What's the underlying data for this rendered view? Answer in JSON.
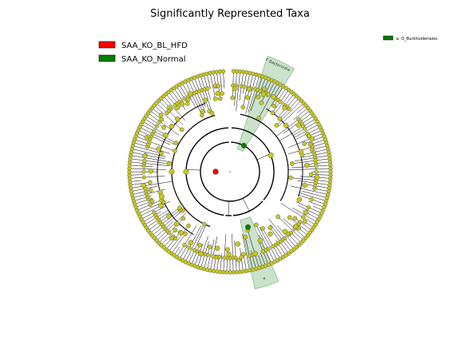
{
  "chart_data": {
    "type": "cladogram",
    "title": "Significantly Represented Taxa",
    "legend": [
      {
        "name": "SAA_KO_BL_HFD",
        "color": "#ff0000"
      },
      {
        "name": "SAA_KO_Normal",
        "color": "#008000"
      }
    ],
    "legend_placement": "top-left",
    "secondary_legend": [
      {
        "name": "a: O_Burkholderiales",
        "color": "#008000"
      }
    ],
    "secondary_legend_placement": "top-right",
    "highlighted_clades": [
      {
        "label": "F Bacteroidia",
        "group": "SAA_KO_Normal",
        "color": "#2e8b2e"
      },
      {
        "label": "a",
        "group": "SAA_KO_Normal",
        "color": "#2e8b2e"
      }
    ],
    "enriched_nodes": [
      {
        "group": "SAA_KO_BL_HFD",
        "level": "root"
      },
      {
        "group": "SAA_KO_Normal",
        "level": "class"
      },
      {
        "group": "SAA_KO_Normal",
        "level": "order"
      }
    ],
    "taxonomic_levels": 6,
    "non_significant_color": "#c8c820"
  }
}
